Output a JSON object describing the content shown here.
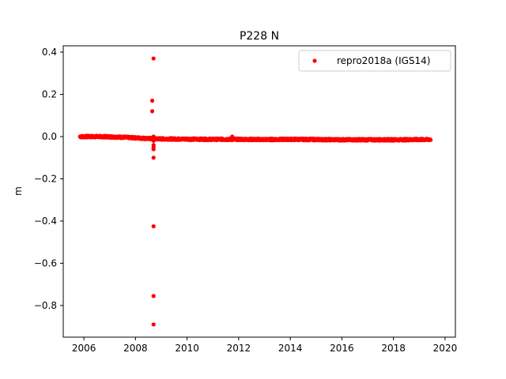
{
  "chart_data": {
    "type": "scatter",
    "title": "P228 N",
    "xlabel": "",
    "ylabel": "m",
    "xlim": [
      2005.2,
      2020.4
    ],
    "ylim": [
      -0.95,
      0.43
    ],
    "xticks": [
      2006,
      2008,
      2010,
      2012,
      2014,
      2016,
      2018,
      2020
    ],
    "yticks": [
      -0.8,
      -0.6,
      -0.4,
      -0.2,
      0.0,
      0.2,
      0.4
    ],
    "ytick_labels": [
      "−0.8",
      "−0.6",
      "−0.4",
      "−0.2",
      "0.0",
      "0.2",
      "0.4"
    ],
    "grid": false,
    "legend_position": "top-right",
    "series": [
      {
        "name": "repro2018a (IGS14)",
        "color": "#ff0000",
        "marker": "circle",
        "baseline": [
          [
            2005.85,
            0.0
          ],
          [
            2006.5,
            0.0
          ],
          [
            2007.0,
            -0.001
          ],
          [
            2007.5,
            -0.003
          ],
          [
            2008.0,
            -0.006
          ],
          [
            2008.5,
            -0.009
          ],
          [
            2009.0,
            -0.011
          ],
          [
            2010.0,
            -0.012
          ],
          [
            2011.0,
            -0.013
          ],
          [
            2012.0,
            -0.013
          ],
          [
            2013.0,
            -0.014
          ],
          [
            2014.0,
            -0.013
          ],
          [
            2015.0,
            -0.014
          ],
          [
            2016.0,
            -0.015
          ],
          [
            2017.0,
            -0.015
          ],
          [
            2018.0,
            -0.015
          ],
          [
            2019.0,
            -0.014
          ],
          [
            2019.45,
            -0.014
          ]
        ],
        "outliers": [
          [
            2008.7,
            0.37
          ],
          [
            2008.65,
            0.17
          ],
          [
            2008.65,
            0.12
          ],
          [
            2008.7,
            0.0
          ],
          [
            2008.7,
            -0.02
          ],
          [
            2008.7,
            -0.04
          ],
          [
            2008.7,
            -0.05
          ],
          [
            2008.7,
            -0.06
          ],
          [
            2008.7,
            -0.1
          ],
          [
            2008.7,
            -0.425
          ],
          [
            2008.7,
            -0.755
          ],
          [
            2008.7,
            -0.89
          ],
          [
            2011.75,
            0.0
          ]
        ]
      }
    ]
  }
}
